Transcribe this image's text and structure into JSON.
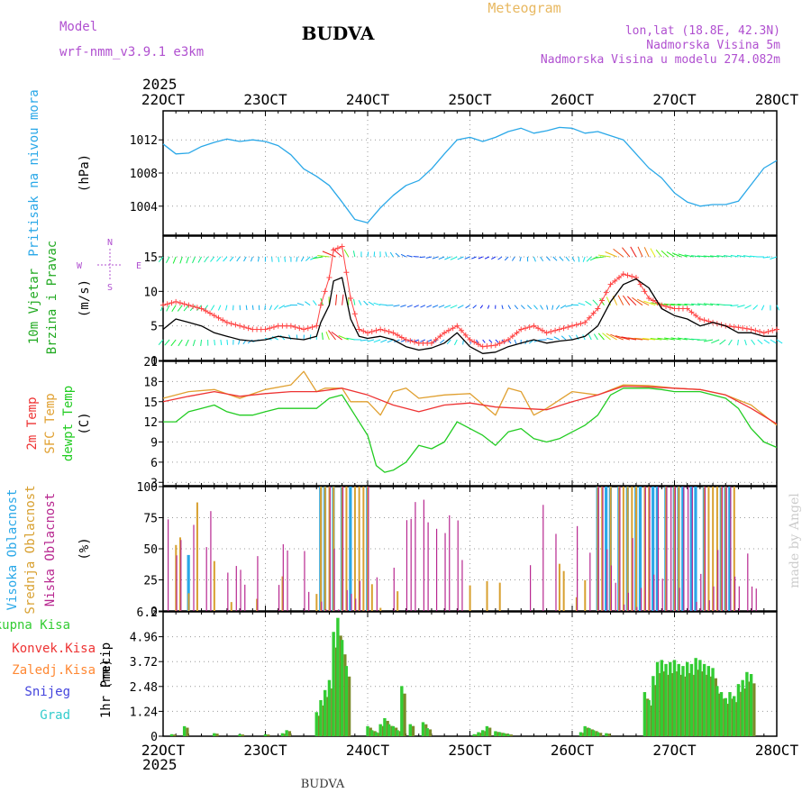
{
  "header": {
    "model_label": "Model",
    "model_name": "wrf-nmm_v3.9.1 e3km",
    "station": "BUDVA",
    "meteogram_label": "Meteogram",
    "coords": "lon,lat (18.8E, 42.3N)",
    "altitude": "Nadmorska Visina 5m",
    "model_altitude": "Nadmorska Visina u modelu 274.082m",
    "year_top": "2025",
    "year_bottom": "2025",
    "footer_station": "BUDVA",
    "credit": "made by Angel"
  },
  "colors": {
    "pressure": "#2aa8e8",
    "wind_speed": "#000000",
    "gust": "#ff4444",
    "temp_2m": "#ee3333",
    "temp_sfc": "#e0a030",
    "dewpoint": "#22cc22",
    "cloud_high": "#2aa8e8",
    "cloud_mid": "#d8a030",
    "cloud_low": "#b82890",
    "precip_total": "#33cc33",
    "precip_conv": "#ee3333",
    "precip_frozen": "#ff8833",
    "precip_snow": "#4444dd",
    "precip_grad": "#33cccc"
  },
  "chart_data": {
    "type": "meteogram",
    "x_ticks": [
      "22OCT",
      "23OCT",
      "24OCT",
      "25OCT",
      "26OCT",
      "27OCT",
      "28OCT"
    ],
    "x_range_hours": [
      0,
      144
    ],
    "panels": [
      {
        "id": "pressure",
        "type": "line",
        "ylabel_lines": [
          "Pritisak na nivou mora"
        ],
        "unit": "(hPa)",
        "ylim": [
          1000.5,
          1015.5
        ],
        "yticks": [
          1004,
          1008,
          1012
        ],
        "series": [
          {
            "name": "Pritisak",
            "x": [
              0,
              3,
              6,
              9,
              12,
              15,
              18,
              21,
              24,
              27,
              30,
              33,
              36,
              39,
              42,
              45,
              48,
              51,
              54,
              57,
              60,
              63,
              66,
              69,
              72,
              75,
              78,
              81,
              84,
              87,
              90,
              93,
              96,
              99,
              102,
              105,
              108,
              111,
              114,
              117,
              120,
              123,
              126,
              129,
              132,
              135,
              138,
              141,
              144
            ],
            "values": [
              1011.5,
              1010.3,
              1010.4,
              1011.2,
              1011.7,
              1012.1,
              1011.8,
              1012.0,
              1011.8,
              1011.3,
              1010.2,
              1008.5,
              1007.6,
              1006.5,
              1004.5,
              1002.4,
              1002.0,
              1003.8,
              1005.3,
              1006.5,
              1007.1,
              1008.5,
              1010.3,
              1012.0,
              1012.3,
              1011.8,
              1012.3,
              1013.0,
              1013.4,
              1012.8,
              1013.1,
              1013.5,
              1013.4,
              1012.8,
              1013.0,
              1012.5,
              1012.0,
              1010.3,
              1008.6,
              1007.4,
              1005.6,
              1004.5,
              1004.0,
              1004.2,
              1004.2,
              1004.6,
              1006.6,
              1008.6,
              1009.5
            ]
          }
        ]
      },
      {
        "id": "wind",
        "type": "line+barbs",
        "ylabel_lines": [
          "10m Vjetar",
          "Brzina i Pravac"
        ],
        "unit": "(m/s)",
        "ylim": [
          0,
          18
        ],
        "yticks": [
          0,
          5,
          10,
          15
        ],
        "compass": {
          "n": "N",
          "s": "S",
          "e": "E",
          "w": "W"
        },
        "barb_levels": [
          15,
          8,
          3
        ],
        "series": [
          {
            "name": "Brzina",
            "x": [
              0,
              3,
              6,
              9,
              12,
              15,
              18,
              21,
              24,
              27,
              30,
              33,
              36,
              37,
              39,
              40,
              42,
              44,
              46,
              48,
              51,
              54,
              57,
              60,
              63,
              66,
              69,
              72,
              75,
              78,
              81,
              84,
              87,
              90,
              93,
              96,
              99,
              102,
              105,
              108,
              111,
              114,
              117,
              120,
              123,
              126,
              129,
              132,
              135,
              138,
              141,
              144
            ],
            "values": [
              4.5,
              6.0,
              5.5,
              5.0,
              4.0,
              3.5,
              3.0,
              2.8,
              3.0,
              3.5,
              3.2,
              3.0,
              3.5,
              5.5,
              8.0,
              11.5,
              12.0,
              6.0,
              3.5,
              3.2,
              3.5,
              3.0,
              2.0,
              1.5,
              1.8,
              2.5,
              4.0,
              2.0,
              1.0,
              1.2,
              2.0,
              2.5,
              3.0,
              2.5,
              2.8,
              3.0,
              3.5,
              5.0,
              8.5,
              11.0,
              11.8,
              10.5,
              7.5,
              6.5,
              6.0,
              5.0,
              5.5,
              5.0,
              4.0,
              4.0,
              3.5,
              3.5
            ]
          },
          {
            "name": "Udari",
            "x": [
              0,
              3,
              6,
              9,
              12,
              15,
              18,
              21,
              24,
              27,
              30,
              33,
              36,
              37,
              39,
              40,
              42,
              44,
              46,
              48,
              51,
              54,
              57,
              60,
              63,
              66,
              69,
              72,
              75,
              78,
              81,
              84,
              87,
              90,
              93,
              96,
              99,
              102,
              105,
              108,
              111,
              114,
              117,
              120,
              123,
              126,
              129,
              132,
              135,
              138,
              141,
              144
            ],
            "values": [
              8.0,
              8.5,
              8.0,
              7.5,
              6.5,
              5.5,
              5.0,
              4.5,
              4.5,
              5.0,
              5.0,
              4.5,
              5.0,
              8.0,
              12.0,
              16.0,
              16.5,
              9.0,
              4.5,
              4.0,
              4.5,
              4.0,
              3.0,
              2.5,
              2.5,
              4.0,
              5.0,
              3.0,
              2.0,
              2.2,
              3.0,
              4.5,
              5.0,
              4.0,
              4.5,
              5.0,
              5.5,
              7.5,
              11.0,
              12.5,
              12.0,
              9.0,
              8.0,
              7.5,
              7.5,
              6.0,
              5.5,
              5.0,
              4.8,
              4.5,
              4.0,
              4.5
            ]
          }
        ]
      },
      {
        "id": "temp",
        "type": "line",
        "ylabel_lines": [
          "2m Temp",
          "SFC Temp",
          "dewpt Temp"
        ],
        "unit": "(C)",
        "ylim": [
          2.5,
          21
        ],
        "yticks": [
          3,
          6,
          9,
          12,
          15,
          18,
          21
        ],
        "series": [
          {
            "name": "2m Temp",
            "x": [
              0,
              6,
              12,
              18,
              24,
              30,
              36,
              42,
              48,
              54,
              60,
              66,
              72,
              78,
              84,
              90,
              96,
              102,
              108,
              114,
              120,
              126,
              132,
              138,
              144
            ],
            "values": [
              15.0,
              15.8,
              16.5,
              15.8,
              16.2,
              16.5,
              16.5,
              17.0,
              16.0,
              14.5,
              13.5,
              14.5,
              14.8,
              14.2,
              14.0,
              13.8,
              15.0,
              16.0,
              17.3,
              17.2,
              17.0,
              16.8,
              16.0,
              14.0,
              11.7
            ]
          },
          {
            "name": "SFC Temp",
            "x": [
              0,
              6,
              12,
              18,
              24,
              30,
              33,
              36,
              38,
              42,
              44,
              48,
              51,
              54,
              57,
              60,
              66,
              72,
              78,
              81,
              84,
              87,
              90,
              96,
              102,
              108,
              114,
              120,
              126,
              132,
              138,
              144
            ],
            "values": [
              15.5,
              16.5,
              16.8,
              15.5,
              16.8,
              17.5,
              19.5,
              16.5,
              17.0,
              17.0,
              15.0,
              15.0,
              13.0,
              16.5,
              17.0,
              15.5,
              16.0,
              16.2,
              13.0,
              17.0,
              16.5,
              13.0,
              14.0,
              16.5,
              16.0,
              17.5,
              17.4,
              17.0,
              16.8,
              16.0,
              14.5,
              11.5
            ]
          },
          {
            "name": "dewpt Temp",
            "x": [
              0,
              3,
              6,
              9,
              12,
              15,
              18,
              21,
              24,
              27,
              30,
              33,
              36,
              39,
              42,
              45,
              48,
              50,
              52,
              54,
              57,
              60,
              63,
              66,
              69,
              72,
              75,
              78,
              81,
              84,
              87,
              90,
              93,
              96,
              99,
              102,
              105,
              108,
              111,
              114,
              117,
              120,
              123,
              126,
              129,
              132,
              135,
              138,
              141,
              144
            ],
            "values": [
              12.0,
              12.0,
              13.5,
              14.0,
              14.5,
              13.5,
              13.0,
              13.0,
              13.5,
              14.0,
              14.0,
              14.0,
              14.0,
              15.5,
              16.0,
              13.0,
              10.0,
              5.5,
              4.5,
              4.8,
              6.0,
              8.5,
              8.0,
              9.0,
              12.0,
              11.0,
              10.0,
              8.5,
              10.5,
              11.0,
              9.5,
              9.0,
              9.5,
              10.5,
              11.5,
              13.0,
              16.0,
              17.0,
              17.0,
              17.0,
              16.8,
              16.5,
              16.5,
              16.5,
              16.0,
              15.5,
              14.0,
              11.0,
              9.0,
              8.2
            ]
          }
        ]
      },
      {
        "id": "clouds",
        "type": "bar",
        "ylabel_lines": [
          "Visoka Oblacnost",
          "Srednja Oblacnost",
          "Niska Oblacnost"
        ],
        "unit": "(%)",
        "ylim": [
          0,
          100
        ],
        "yticks": [
          0,
          25,
          50,
          75,
          100
        ]
      },
      {
        "id": "precip",
        "type": "bar",
        "ylabel_lines": [
          "1hr Precip"
        ],
        "unit": "(mm)",
        "ylim": [
          0,
          6.2
        ],
        "yticks": [
          0,
          1.24,
          2.48,
          3.72,
          4.96,
          6.2
        ],
        "ytick_labels": [
          "0",
          "1.24",
          "2.48",
          "3.72",
          "4.96",
          "6.2"
        ],
        "legend": [
          "Ukupna Kisa",
          "Konvek.Kisa",
          "Zaledj.Kisa",
          "Snijeg",
          "Grad"
        ],
        "series": [
          {
            "name": "Ukupna Kisa",
            "x": [
              2,
              5,
              12,
              18,
              24,
              28,
              29,
              36,
              37,
              38,
              39,
              40,
              41,
              42,
              43,
              48,
              49,
              50,
              51,
              52,
              53,
              54,
              55,
              56,
              58,
              61,
              62,
              73,
              74,
              75,
              76,
              78,
              79,
              80,
              81,
              98,
              99,
              100,
              101,
              102,
              104,
              113,
              114,
              115,
              116,
              117,
              118,
              119,
              120,
              121,
              122,
              123,
              124,
              125,
              126,
              127,
              128,
              129,
              130,
              131,
              132,
              133,
              134,
              135,
              136,
              137,
              138
            ],
            "values": [
              0.1,
              0.5,
              0.15,
              0.1,
              0.1,
              0.15,
              0.3,
              1.2,
              1.8,
              2.3,
              2.8,
              5.2,
              5.9,
              4.8,
              3.5,
              0.5,
              0.3,
              0.2,
              0.6,
              0.9,
              0.6,
              0.5,
              0.3,
              2.5,
              0.6,
              0.7,
              0.4,
              0.1,
              0.2,
              0.3,
              0.5,
              0.25,
              0.2,
              0.15,
              0.1,
              0.2,
              0.5,
              0.4,
              0.3,
              0.2,
              0.15,
              2.2,
              1.8,
              3.0,
              3.7,
              3.8,
              3.6,
              3.7,
              3.8,
              3.6,
              3.5,
              3.7,
              3.6,
              3.9,
              3.8,
              3.6,
              3.5,
              3.4,
              2.5,
              2.2,
              1.9,
              2.2,
              2.0,
              2.6,
              2.8,
              3.2,
              3.1
            ]
          }
        ]
      }
    ]
  }
}
